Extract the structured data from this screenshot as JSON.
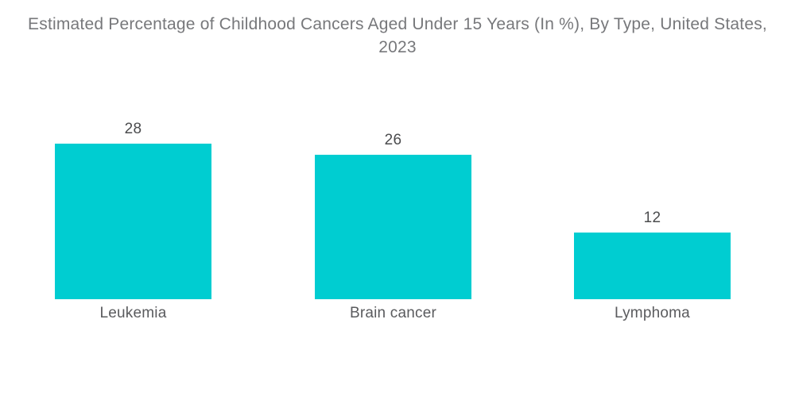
{
  "chart_data": {
    "type": "bar",
    "title": "Estimated Percentage of Childhood Cancers Aged Under 15 Years (In %), By Type, United States, 2023",
    "categories": [
      "Leukemia",
      "Brain cancer",
      "Lymphoma"
    ],
    "values": [
      28,
      26,
      12
    ],
    "data_labels": [
      28,
      26,
      12
    ],
    "xlabel": "",
    "ylabel": "",
    "ylim": [
      0,
      28
    ],
    "grid": false,
    "legend": "none",
    "axes_visible": false,
    "colors": {
      "bar": "#00CDD1",
      "title_text": "#77787B",
      "value_label_text": "#4B4C4E",
      "category_label_text": "#5A5B5E",
      "background": "#FFFFFF"
    }
  }
}
